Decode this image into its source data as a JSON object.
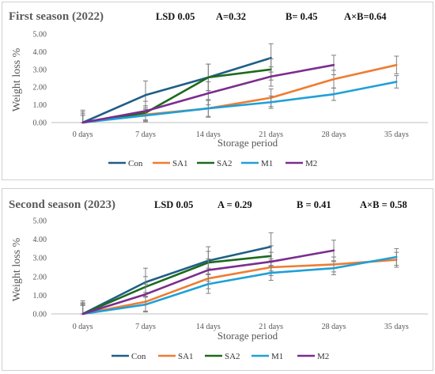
{
  "colors": {
    "Con": "#1f5f86",
    "SA1": "#ef7c31",
    "SA2": "#1d6a1d",
    "M1": "#1fa0d7",
    "M2": "#7b2d8e",
    "error_bar": "#7f7f7f",
    "axis": "#bfbfbf",
    "border": "#d0d0d0"
  },
  "chart_data": [
    {
      "type": "line",
      "title": "First season (2022)",
      "lsd": {
        "label": "LSD 0.05",
        "a": "A=0.32",
        "b": "B= 0.45",
        "axb": "A×B=0.64"
      },
      "xlabel": "Storage period",
      "ylabel": "Weight loss %",
      "ylim": [
        0,
        5
      ],
      "yticks": [
        "0.00",
        "1.00",
        "2.00",
        "3.00",
        "4.00",
        "5.00"
      ],
      "categories": [
        "0 days",
        "7 days",
        "14 days",
        "21 days",
        "28 days",
        "35 days"
      ],
      "legend_position": "bottom",
      "series": [
        {
          "name": "Con",
          "values": [
            0,
            1.55,
            2.55,
            3.65,
            null,
            null
          ],
          "errors": [
            0.7,
            0.8,
            0.75,
            0.8,
            null,
            null
          ]
        },
        {
          "name": "SA1",
          "values": [
            0,
            0.45,
            0.8,
            1.4,
            2.45,
            3.25
          ],
          "errors": [
            0.4,
            0.4,
            0.5,
            0.5,
            0.5,
            0.5
          ]
        },
        {
          "name": "SA2",
          "values": [
            0,
            0.55,
            2.55,
            3.0,
            null,
            null
          ],
          "errors": [
            0.6,
            0.4,
            0.75,
            0.6,
            null,
            null
          ]
        },
        {
          "name": "M1",
          "values": [
            0,
            0.4,
            0.8,
            1.15,
            1.6,
            2.3
          ],
          "errors": [
            0.4,
            0.35,
            0.45,
            0.35,
            0.35,
            0.35
          ]
        },
        {
          "name": "M2",
          "values": [
            0,
            0.65,
            1.65,
            2.6,
            3.25,
            null
          ],
          "errors": [
            0.5,
            0.55,
            0.65,
            0.55,
            0.55,
            null
          ]
        }
      ]
    },
    {
      "type": "line",
      "title": "Second season (2023)",
      "lsd": {
        "label": "LSD 0.05",
        "a": "A = 0.29",
        "b": "B = 0.41",
        "axb": "A×B = 0.58"
      },
      "xlabel": "Storage period",
      "ylabel": "Weight loss %",
      "ylim": [
        0,
        5
      ],
      "yticks": [
        "0.00",
        "1.00",
        "2.00",
        "3.00",
        "4.00",
        "5.00"
      ],
      "categories": [
        "0 days",
        "7 days",
        "14 days",
        "21 days",
        "28 days",
        "35 days"
      ],
      "legend_position": "bottom",
      "series": [
        {
          "name": "Con",
          "values": [
            0,
            1.7,
            2.85,
            3.6,
            null,
            null
          ],
          "errors": [
            0.7,
            0.75,
            0.75,
            0.75,
            null,
            null
          ]
        },
        {
          "name": "SA1",
          "values": [
            0,
            0.65,
            1.9,
            2.5,
            2.65,
            2.9
          ],
          "errors": [
            0.5,
            0.5,
            0.55,
            0.45,
            0.4,
            0.4
          ]
        },
        {
          "name": "SA2",
          "values": [
            0,
            1.45,
            2.75,
            3.1,
            null,
            null
          ],
          "errors": [
            0.6,
            0.55,
            0.6,
            0.55,
            null,
            null
          ]
        },
        {
          "name": "M1",
          "values": [
            0,
            0.5,
            1.6,
            2.2,
            2.45,
            3.05
          ],
          "errors": [
            0.45,
            0.4,
            0.5,
            0.4,
            0.35,
            0.45
          ]
        },
        {
          "name": "M2",
          "values": [
            0,
            1.05,
            2.35,
            2.8,
            3.4,
            null
          ],
          "errors": [
            0.55,
            0.55,
            0.6,
            0.5,
            0.55,
            null
          ]
        }
      ]
    }
  ]
}
